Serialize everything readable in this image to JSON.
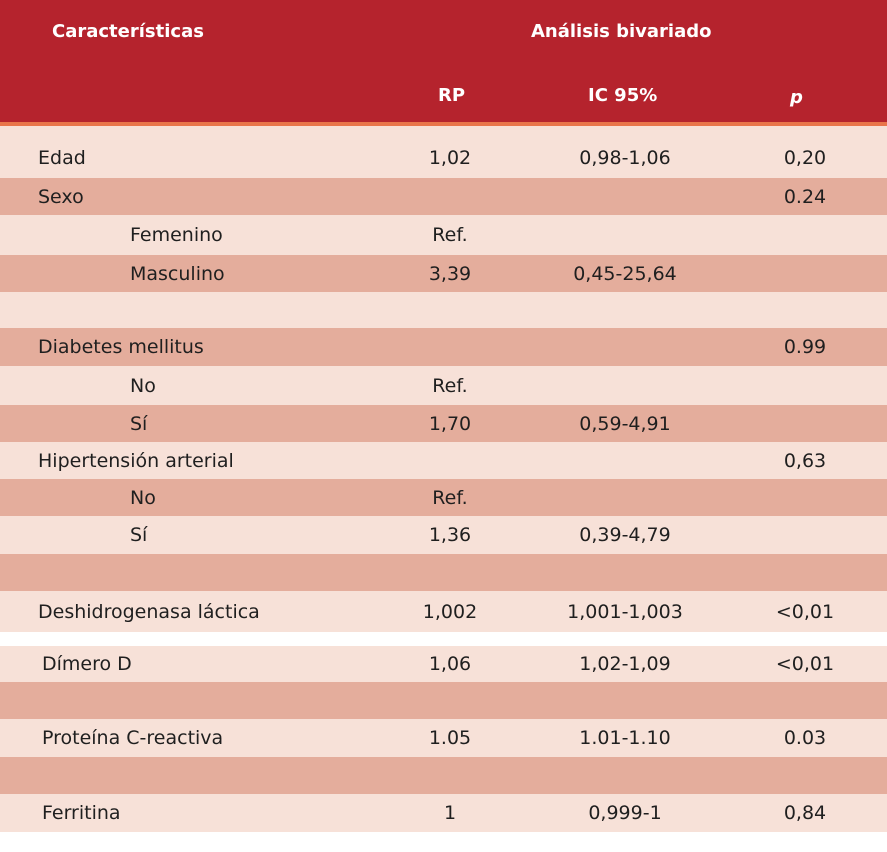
{
  "header": {
    "characteristics": "Características",
    "analysis": "Análisis bivariado",
    "rp": "RP",
    "ic": "IC 95%",
    "p": "p"
  },
  "rows": [
    {
      "label": "Edad",
      "rp": "1,02",
      "ic": "0,98-1,06",
      "p": "0,20"
    },
    {
      "label": "Sexo",
      "rp": "",
      "ic": "",
      "p": "0.24"
    },
    {
      "label": "Femenino",
      "rp": "Ref.",
      "ic": "",
      "p": ""
    },
    {
      "label": "Masculino",
      "rp": "3,39",
      "ic": "0,45-25,64",
      "p": ""
    },
    {
      "label": "",
      "rp": "",
      "ic": "",
      "p": ""
    },
    {
      "label": "Diabetes mellitus",
      "rp": "",
      "ic": "",
      "p": "0.99"
    },
    {
      "label": "No",
      "rp": "Ref.",
      "ic": "",
      "p": ""
    },
    {
      "label": "Sí",
      "rp": "1,70",
      "ic": "0,59-4,91",
      "p": ""
    },
    {
      "label": "Hipertensión arterial",
      "rp": "",
      "ic": "",
      "p": "0,63"
    },
    {
      "label": "No",
      "rp": "Ref.",
      "ic": "",
      "p": ""
    },
    {
      "label": "Sí",
      "rp": "1,36",
      "ic": "0,39-4,79",
      "p": ""
    },
    {
      "label": "",
      "rp": "",
      "ic": "",
      "p": ""
    },
    {
      "label": "Deshidrogenasa láctica",
      "rp": "1,002",
      "ic": "1,001-1,003",
      "p": "<0,01"
    },
    {
      "label": "Dímero D",
      "rp": "1,06",
      "ic": "1,02-1,09",
      "p": "<0,01"
    },
    {
      "label": "",
      "rp": "",
      "ic": "",
      "p": ""
    },
    {
      "label": "Proteína C-reactiva",
      "rp": "1.05",
      "ic": "1.01-1.10",
      "p": "0.03"
    },
    {
      "label": "",
      "rp": "",
      "ic": "",
      "p": ""
    },
    {
      "label": "Ferritina",
      "rp": "1",
      "ic": "0,999-1",
      "p": "0,84"
    }
  ],
  "colors": {
    "header": "#b5232d",
    "header_line": "#e9754a",
    "row_light": "#f7e1d8",
    "row_dark": "#e4ad9c"
  }
}
